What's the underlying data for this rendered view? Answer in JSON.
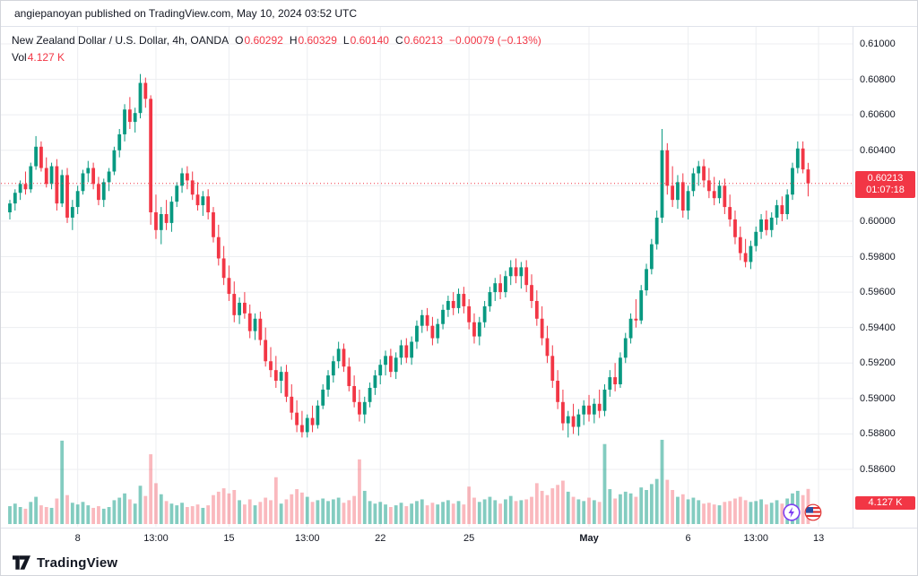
{
  "attribution": {
    "text": "angiepanoyan published on TradingView.com, May 10, 2024 03:52 UTC"
  },
  "legend": {
    "symbol": "New Zealand Dollar / U.S. Dollar, 4h, OANDA",
    "open_label": "O",
    "open": "0.60292",
    "high_label": "H",
    "high": "0.60329",
    "low_label": "L",
    "low": "0.60140",
    "close_label": "C",
    "close": "0.60213",
    "change": "−0.00079 (−0.13%)",
    "volume_label": "Vol",
    "volume_value": "4.127 K"
  },
  "price_axis": {
    "current_price": "0.60213",
    "countdown": "01:07:18",
    "volume_badge": "4.127 K",
    "labels": [
      {
        "text": "0.61000",
        "price": 0.61
      },
      {
        "text": "0.60800",
        "price": 0.608
      },
      {
        "text": "0.60600",
        "price": 0.606
      },
      {
        "text": "0.60400",
        "price": 0.604
      },
      {
        "text": "0.60000",
        "price": 0.6
      },
      {
        "text": "0.59800",
        "price": 0.598
      },
      {
        "text": "0.59600",
        "price": 0.596
      },
      {
        "text": "0.59400",
        "price": 0.594
      },
      {
        "text": "0.59200",
        "price": 0.592
      },
      {
        "text": "0.59000",
        "price": 0.59
      },
      {
        "text": "0.58800",
        "price": 0.588
      },
      {
        "text": "0.58600",
        "price": 0.586
      }
    ]
  },
  "footer": {
    "brand": "TradingView"
  },
  "colors": {
    "up": "#089981",
    "down": "#F23645",
    "vol_up": "rgba(8,153,129,0.5)",
    "vol_down": "rgba(242,54,69,0.35)",
    "grid": "#eceef1",
    "badge": "#F23645",
    "text": "#131722"
  },
  "chart_data": {
    "type": "candlestick",
    "title": "New Zealand Dollar / U.S. Dollar, 4h, OANDA",
    "symbol": "NZD/USD",
    "timeframe": "4h",
    "exchange": "OANDA",
    "ylim": [
      0.586,
      0.61
    ],
    "volume_unit": "K",
    "current": {
      "open": 0.60292,
      "high": 0.60329,
      "low": 0.6014,
      "close": 0.60213,
      "change": -0.00079,
      "change_pct": -0.13,
      "volume_k": 4.127
    },
    "y_grid": [
      0.61,
      0.608,
      0.606,
      0.604,
      0.602,
      0.6,
      0.598,
      0.596,
      0.594,
      0.592,
      0.59,
      0.588,
      0.586
    ],
    "x_ticks": [
      {
        "label": "8",
        "i": 13
      },
      {
        "label": "13:00",
        "i": 28
      },
      {
        "label": "15",
        "i": 42
      },
      {
        "label": "13:00",
        "i": 57
      },
      {
        "label": "22",
        "i": 71
      },
      {
        "label": "25",
        "i": 88
      },
      {
        "label": "May",
        "i": 111,
        "bold": true
      },
      {
        "label": "6",
        "i": 130
      },
      {
        "label": "13:00",
        "i": 143
      },
      {
        "label": "13",
        "i": 155
      }
    ],
    "ohlcv": [
      [
        0.6005,
        0.6012,
        0.6001,
        0.601,
        2.1
      ],
      [
        0.601,
        0.6018,
        0.6006,
        0.6016,
        2.4
      ],
      [
        0.6016,
        0.6023,
        0.6012,
        0.6021,
        2.0
      ],
      [
        0.6021,
        0.6028,
        0.6015,
        0.6018,
        1.8
      ],
      [
        0.6018,
        0.6033,
        0.6016,
        0.6031,
        2.6
      ],
      [
        0.6031,
        0.6048,
        0.6029,
        0.6042,
        3.2
      ],
      [
        0.6042,
        0.6045,
        0.6028,
        0.603,
        2.2
      ],
      [
        0.603,
        0.6036,
        0.6019,
        0.6021,
        2.0
      ],
      [
        0.6021,
        0.6033,
        0.6018,
        0.6031,
        1.9
      ],
      [
        0.6031,
        0.6035,
        0.6006,
        0.601,
        3.0
      ],
      [
        0.601,
        0.6029,
        0.6008,
        0.6026,
        9.8
      ],
      [
        0.6026,
        0.603,
        0.5999,
        0.6002,
        3.4
      ],
      [
        0.6002,
        0.6012,
        0.5995,
        0.6008,
        2.5
      ],
      [
        0.6008,
        0.602,
        0.6004,
        0.6017,
        2.3
      ],
      [
        0.6017,
        0.6029,
        0.6015,
        0.6027,
        2.6
      ],
      [
        0.6027,
        0.6034,
        0.6022,
        0.603,
        2.2
      ],
      [
        0.603,
        0.6033,
        0.6018,
        0.6021,
        1.9
      ],
      [
        0.6021,
        0.6025,
        0.6009,
        0.6012,
        2.1
      ],
      [
        0.6012,
        0.6024,
        0.6008,
        0.6022,
        1.8
      ],
      [
        0.6022,
        0.603,
        0.6017,
        0.6028,
        2.0
      ],
      [
        0.6028,
        0.6042,
        0.6026,
        0.604,
        2.8
      ],
      [
        0.604,
        0.6052,
        0.6036,
        0.6049,
        3.1
      ],
      [
        0.6049,
        0.6066,
        0.6045,
        0.6063,
        3.6
      ],
      [
        0.6063,
        0.607,
        0.6052,
        0.6056,
        2.9
      ],
      [
        0.6056,
        0.6064,
        0.605,
        0.6061,
        2.4
      ],
      [
        0.6061,
        0.6083,
        0.6058,
        0.6078,
        4.5
      ],
      [
        0.6078,
        0.6081,
        0.6064,
        0.6069,
        3.3
      ],
      [
        0.6069,
        0.6071,
        0.5998,
        0.6005,
        8.2
      ],
      [
        0.6005,
        0.6015,
        0.599,
        0.5995,
        4.8
      ],
      [
        0.5995,
        0.6008,
        0.5987,
        0.6004,
        3.5
      ],
      [
        0.6004,
        0.6012,
        0.5995,
        0.5999,
        2.7
      ],
      [
        0.5999,
        0.6014,
        0.5994,
        0.6011,
        2.4
      ],
      [
        0.6011,
        0.6022,
        0.6008,
        0.602,
        2.2
      ],
      [
        0.602,
        0.603,
        0.6016,
        0.6027,
        2.5
      ],
      [
        0.6027,
        0.6031,
        0.6018,
        0.6023,
        2.0
      ],
      [
        0.6023,
        0.6028,
        0.6012,
        0.6015,
        2.1
      ],
      [
        0.6015,
        0.6022,
        0.6006,
        0.6009,
        2.3
      ],
      [
        0.6009,
        0.6017,
        0.6003,
        0.6014,
        1.9
      ],
      [
        0.6014,
        0.6018,
        0.6001,
        0.6005,
        2.2
      ],
      [
        0.6005,
        0.6008,
        0.5988,
        0.5991,
        3.4
      ],
      [
        0.5991,
        0.5998,
        0.5975,
        0.5979,
        3.8
      ],
      [
        0.5979,
        0.5986,
        0.5964,
        0.5968,
        4.2
      ],
      [
        0.5968,
        0.5975,
        0.5955,
        0.5959,
        3.6
      ],
      [
        0.5959,
        0.5966,
        0.5943,
        0.5947,
        4.0
      ],
      [
        0.5947,
        0.5957,
        0.5942,
        0.5954,
        2.8
      ],
      [
        0.5954,
        0.596,
        0.5945,
        0.5948,
        2.3
      ],
      [
        0.5948,
        0.5953,
        0.5934,
        0.5938,
        2.9
      ],
      [
        0.5938,
        0.5948,
        0.5933,
        0.5945,
        2.2
      ],
      [
        0.5945,
        0.5949,
        0.593,
        0.5933,
        2.6
      ],
      [
        0.5933,
        0.594,
        0.5918,
        0.5921,
        3.1
      ],
      [
        0.5921,
        0.5929,
        0.5912,
        0.5916,
        2.8
      ],
      [
        0.5916,
        0.5924,
        0.5906,
        0.591,
        5.5
      ],
      [
        0.591,
        0.5918,
        0.5903,
        0.5915,
        2.4
      ],
      [
        0.5915,
        0.5919,
        0.5898,
        0.5901,
        2.9
      ],
      [
        0.5901,
        0.5908,
        0.5888,
        0.5892,
        3.5
      ],
      [
        0.5892,
        0.5899,
        0.5881,
        0.5885,
        4.1
      ],
      [
        0.5885,
        0.5893,
        0.5878,
        0.5881,
        3.7
      ],
      [
        0.5881,
        0.5891,
        0.5878,
        0.5889,
        3.2
      ],
      [
        0.5889,
        0.5896,
        0.5881,
        0.5885,
        2.6
      ],
      [
        0.5885,
        0.5899,
        0.5883,
        0.5896,
        2.8
      ],
      [
        0.5896,
        0.5908,
        0.5894,
        0.5905,
        3.0
      ],
      [
        0.5905,
        0.5916,
        0.5901,
        0.5913,
        2.7
      ],
      [
        0.5913,
        0.5924,
        0.5909,
        0.5921,
        2.9
      ],
      [
        0.5921,
        0.5932,
        0.5917,
        0.5928,
        3.1
      ],
      [
        0.5928,
        0.5931,
        0.5915,
        0.5918,
        2.5
      ],
      [
        0.5918,
        0.5923,
        0.5904,
        0.5907,
        2.8
      ],
      [
        0.5907,
        0.5913,
        0.5895,
        0.5898,
        3.3
      ],
      [
        0.5898,
        0.5905,
        0.5887,
        0.5891,
        7.6
      ],
      [
        0.5891,
        0.5901,
        0.5886,
        0.5898,
        3.9
      ],
      [
        0.5898,
        0.5909,
        0.5895,
        0.5906,
        2.7
      ],
      [
        0.5906,
        0.5916,
        0.5902,
        0.5913,
        2.4
      ],
      [
        0.5913,
        0.5922,
        0.5908,
        0.5919,
        2.6
      ],
      [
        0.5919,
        0.5927,
        0.5913,
        0.5924,
        2.3
      ],
      [
        0.5924,
        0.5928,
        0.5912,
        0.5915,
        2.0
      ],
      [
        0.5915,
        0.5926,
        0.5911,
        0.5923,
        2.2
      ],
      [
        0.5923,
        0.5933,
        0.5919,
        0.593,
        2.5
      ],
      [
        0.593,
        0.5934,
        0.592,
        0.5923,
        2.1
      ],
      [
        0.5923,
        0.5935,
        0.5919,
        0.5932,
        2.4
      ],
      [
        0.5932,
        0.5944,
        0.5928,
        0.5941,
        2.7
      ],
      [
        0.5941,
        0.595,
        0.5937,
        0.5947,
        2.9
      ],
      [
        0.5947,
        0.5951,
        0.5938,
        0.5941,
        2.2
      ],
      [
        0.5941,
        0.5946,
        0.593,
        0.5934,
        2.5
      ],
      [
        0.5934,
        0.5945,
        0.5931,
        0.5942,
        2.3
      ],
      [
        0.5942,
        0.5953,
        0.5939,
        0.595,
        2.6
      ],
      [
        0.595,
        0.5958,
        0.5946,
        0.5955,
        2.8
      ],
      [
        0.5955,
        0.596,
        0.5947,
        0.5951,
        2.4
      ],
      [
        0.5951,
        0.5962,
        0.5948,
        0.5959,
        2.7
      ],
      [
        0.5959,
        0.5963,
        0.5948,
        0.5952,
        2.3
      ],
      [
        0.5952,
        0.5956,
        0.5939,
        0.5943,
        4.4
      ],
      [
        0.5943,
        0.5948,
        0.5931,
        0.5935,
        3.1
      ],
      [
        0.5935,
        0.5946,
        0.593,
        0.5943,
        2.6
      ],
      [
        0.5943,
        0.5955,
        0.594,
        0.5952,
        2.9
      ],
      [
        0.5952,
        0.5963,
        0.5949,
        0.596,
        3.2
      ],
      [
        0.596,
        0.5968,
        0.5955,
        0.5965,
        2.8
      ],
      [
        0.5965,
        0.597,
        0.5956,
        0.596,
        2.4
      ],
      [
        0.596,
        0.5972,
        0.5957,
        0.5969,
        2.9
      ],
      [
        0.5969,
        0.5978,
        0.5964,
        0.5974,
        3.3
      ],
      [
        0.5974,
        0.5979,
        0.5965,
        0.5969,
        2.7
      ],
      [
        0.5969,
        0.5977,
        0.5962,
        0.5974,
        2.8
      ],
      [
        0.5974,
        0.5978,
        0.596,
        0.5964,
        2.9
      ],
      [
        0.5964,
        0.597,
        0.5951,
        0.5955,
        3.2
      ],
      [
        0.5955,
        0.5961,
        0.5941,
        0.5945,
        4.8
      ],
      [
        0.5945,
        0.5952,
        0.593,
        0.5934,
        3.9
      ],
      [
        0.5934,
        0.5941,
        0.592,
        0.5924,
        3.4
      ],
      [
        0.5924,
        0.593,
        0.5906,
        0.591,
        4.2
      ],
      [
        0.591,
        0.5916,
        0.5894,
        0.5898,
        4.6
      ],
      [
        0.5898,
        0.5905,
        0.5882,
        0.5886,
        5.1
      ],
      [
        0.5886,
        0.5893,
        0.5878,
        0.589,
        3.8
      ],
      [
        0.589,
        0.5897,
        0.588,
        0.5884,
        3.2
      ],
      [
        0.5884,
        0.5894,
        0.5879,
        0.5891,
        2.9
      ],
      [
        0.5891,
        0.5899,
        0.5885,
        0.5896,
        2.7
      ],
      [
        0.5896,
        0.5902,
        0.5887,
        0.5891,
        3.1
      ],
      [
        0.5891,
        0.59,
        0.5886,
        0.5897,
        2.8
      ],
      [
        0.5897,
        0.5905,
        0.5889,
        0.5893,
        2.6
      ],
      [
        0.5893,
        0.5908,
        0.589,
        0.5905,
        9.4
      ],
      [
        0.5905,
        0.5916,
        0.5901,
        0.5912,
        4.1
      ],
      [
        0.5912,
        0.592,
        0.5904,
        0.5908,
        3.0
      ],
      [
        0.5908,
        0.5926,
        0.5906,
        0.5923,
        3.5
      ],
      [
        0.5923,
        0.5937,
        0.592,
        0.5934,
        3.8
      ],
      [
        0.5934,
        0.5948,
        0.5931,
        0.5945,
        3.6
      ],
      [
        0.5945,
        0.5956,
        0.594,
        0.5944,
        3.2
      ],
      [
        0.5944,
        0.5964,
        0.5942,
        0.5961,
        4.3
      ],
      [
        0.5961,
        0.5976,
        0.5958,
        0.5973,
        4.0
      ],
      [
        0.5973,
        0.599,
        0.597,
        0.5987,
        4.7
      ],
      [
        0.5987,
        0.6006,
        0.5984,
        0.6002,
        5.3
      ],
      [
        0.6002,
        0.6052,
        0.5999,
        0.604,
        9.9
      ],
      [
        0.604,
        0.6044,
        0.6015,
        0.602,
        5.2
      ],
      [
        0.602,
        0.6031,
        0.6008,
        0.6012,
        4.0
      ],
      [
        0.6012,
        0.6026,
        0.6007,
        0.6022,
        3.2
      ],
      [
        0.6022,
        0.6027,
        0.6002,
        0.6006,
        3.5
      ],
      [
        0.6006,
        0.602,
        0.6001,
        0.6017,
        2.9
      ],
      [
        0.6017,
        0.603,
        0.6014,
        0.6027,
        3.1
      ],
      [
        0.6027,
        0.6034,
        0.602,
        0.6031,
        2.8
      ],
      [
        0.6031,
        0.6035,
        0.6019,
        0.6023,
        2.4
      ],
      [
        0.6023,
        0.603,
        0.6013,
        0.6017,
        2.5
      ],
      [
        0.6017,
        0.6025,
        0.6009,
        0.6013,
        2.3
      ],
      [
        0.6013,
        0.6023,
        0.601,
        0.602,
        2.2
      ],
      [
        0.602,
        0.6024,
        0.6004,
        0.6008,
        2.6
      ],
      [
        0.6008,
        0.6015,
        0.5997,
        0.6001,
        2.7
      ],
      [
        0.6001,
        0.6006,
        0.5987,
        0.5991,
        3.0
      ],
      [
        0.5991,
        0.5997,
        0.5978,
        0.5982,
        3.2
      ],
      [
        0.5982,
        0.599,
        0.5974,
        0.5977,
        2.8
      ],
      [
        0.5977,
        0.5989,
        0.5973,
        0.5986,
        2.6
      ],
      [
        0.5986,
        0.5997,
        0.5983,
        0.5994,
        2.7
      ],
      [
        0.5994,
        0.6004,
        0.599,
        0.6001,
        2.9
      ],
      [
        0.6001,
        0.6006,
        0.5992,
        0.5995,
        2.3
      ],
      [
        0.5995,
        0.6005,
        0.5991,
        0.6002,
        2.5
      ],
      [
        0.6002,
        0.6012,
        0.5998,
        0.6009,
        2.8
      ],
      [
        0.6009,
        0.6014,
        0.6,
        0.6004,
        2.4
      ],
      [
        0.6004,
        0.6018,
        0.6001,
        0.6015,
        3.0
      ],
      [
        0.6015,
        0.6033,
        0.6012,
        0.603,
        3.6
      ],
      [
        0.603,
        0.6045,
        0.6027,
        0.6041,
        3.9
      ],
      [
        0.6041,
        0.6045,
        0.6027,
        0.60292,
        3.4
      ],
      [
        0.60292,
        0.60329,
        0.6014,
        0.60213,
        4.127
      ]
    ]
  }
}
